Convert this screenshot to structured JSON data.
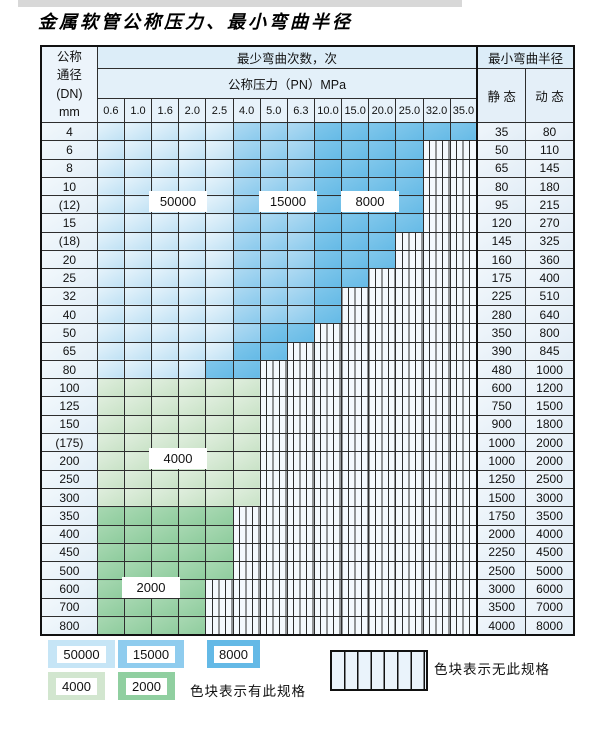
{
  "page_title": "金属软管公称压力、最小弯曲半径",
  "table": {
    "corner_header": "公称\n通径\n(DN)\nmm",
    "bend_cycles_header": "最少弯曲次数，次",
    "pressure_header": "公称压力（PN）MPa",
    "radius_header": "最小弯曲半径",
    "static_label": "静 态",
    "dynamic_label": "动 态",
    "pressure_columns": [
      "0.6",
      "1.0",
      "1.6",
      "2.0",
      "2.5",
      "4.0",
      "5.0",
      "6.3",
      "10.0",
      "15.0",
      "20.0",
      "25.0",
      "32.0",
      "35.0"
    ],
    "zone_codes": {
      "A": "50000次 色块",
      "B": "15000次 色块",
      "C": "8000次 色块",
      "D": "4000次 色块",
      "E": "2000次 色块",
      "X": "无此规格(条纹)"
    },
    "rows": [
      {
        "dn": "4",
        "cells": "AAAAABBBCCCCCC",
        "static": "35",
        "dynamic": "80"
      },
      {
        "dn": "6",
        "cells": "AAAAABBBCCCCXX",
        "static": "50",
        "dynamic": "110"
      },
      {
        "dn": "8",
        "cells": "AAAAABBBCCCCXX",
        "static": "65",
        "dynamic": "145"
      },
      {
        "dn": "10",
        "cells": "AAAAABBBCCCCXX",
        "static": "80",
        "dynamic": "180"
      },
      {
        "dn": "(12)",
        "cells": "AAAAABBBCCCCXX",
        "static": "95",
        "dynamic": "215"
      },
      {
        "dn": "15",
        "cells": "AAAAABBBCCCCXX",
        "static": "120",
        "dynamic": "270"
      },
      {
        "dn": "(18)",
        "cells": "AAAAABBBCCCXXX",
        "static": "145",
        "dynamic": "325"
      },
      {
        "dn": "20",
        "cells": "AAAAABBBCCCXXX",
        "static": "160",
        "dynamic": "360"
      },
      {
        "dn": "25",
        "cells": "AAAAABBBCCXXXX",
        "static": "175",
        "dynamic": "400"
      },
      {
        "dn": "32",
        "cells": "AAAAABBBCXXXXX",
        "static": "225",
        "dynamic": "510"
      },
      {
        "dn": "40",
        "cells": "AAAAABBBCXXXXX",
        "static": "280",
        "dynamic": "640"
      },
      {
        "dn": "50",
        "cells": "AAAAABCCXXXXXX",
        "static": "350",
        "dynamic": "800"
      },
      {
        "dn": "65",
        "cells": "AAAAACCXXXXXXX",
        "static": "390",
        "dynamic": "845"
      },
      {
        "dn": "80",
        "cells": "AAAACCXXXXXXXX",
        "static": "480",
        "dynamic": "1000"
      },
      {
        "dn": "100",
        "cells": "DDDDDDXXXXXXXX",
        "static": "600",
        "dynamic": "1200"
      },
      {
        "dn": "125",
        "cells": "DDDDDDXXXXXXXX",
        "static": "750",
        "dynamic": "1500"
      },
      {
        "dn": "150",
        "cells": "DDDDDDXXXXXXXX",
        "static": "900",
        "dynamic": "1800"
      },
      {
        "dn": "(175)",
        "cells": "DDDDDDXXXXXXXX",
        "static": "1000",
        "dynamic": "2000"
      },
      {
        "dn": "200",
        "cells": "DDDDDDXXXXXXXX",
        "static": "1000",
        "dynamic": "2000"
      },
      {
        "dn": "250",
        "cells": "DDDDDDXXXXXXXX",
        "static": "1250",
        "dynamic": "2500"
      },
      {
        "dn": "300",
        "cells": "DDDDDDXXXXXXXX",
        "static": "1500",
        "dynamic": "3000"
      },
      {
        "dn": "350",
        "cells": "EEEEEXXXXXXXXX",
        "static": "1750",
        "dynamic": "3500"
      },
      {
        "dn": "400",
        "cells": "EEEEEXXXXXXXXX",
        "static": "2000",
        "dynamic": "4000"
      },
      {
        "dn": "450",
        "cells": "EEEEEXXXXXXXXX",
        "static": "2250",
        "dynamic": "4500"
      },
      {
        "dn": "500",
        "cells": "EEEEEXXXXXXXXX",
        "static": "2500",
        "dynamic": "5000"
      },
      {
        "dn": "600",
        "cells": "EEEEXXXXXXXXXX",
        "static": "3000",
        "dynamic": "6000"
      },
      {
        "dn": "700",
        "cells": "EEEEXXXXXXXXXX",
        "static": "3500",
        "dynamic": "7000"
      },
      {
        "dn": "800",
        "cells": "EEEEXXXXXXXXXX",
        "static": "4000",
        "dynamic": "8000"
      }
    ],
    "overlays": [
      {
        "text": "50000"
      },
      {
        "text": "15000"
      },
      {
        "text": "8000"
      },
      {
        "text": "4000"
      },
      {
        "text": "2000"
      }
    ]
  },
  "legend": {
    "swatches": [
      {
        "text": "50000",
        "zone": "A"
      },
      {
        "text": "15000",
        "zone": "B"
      },
      {
        "text": "8000",
        "zone": "C"
      },
      {
        "text": "4000",
        "zone": "D"
      },
      {
        "text": "2000",
        "zone": "E"
      }
    ],
    "has_spec_label": "色块表示有此规格",
    "no_spec_label": "色块表示无此规格"
  },
  "colors": {
    "cycles_50000": "#c6e5f6",
    "cycles_15000": "#8fccee",
    "cycles_8000": "#64b9e6",
    "cycles_4000": "#d2e6cf",
    "cycles_2000": "#90cfa0",
    "grid_line": "#2e2e2e",
    "header_bg": "#e3f0f9"
  }
}
